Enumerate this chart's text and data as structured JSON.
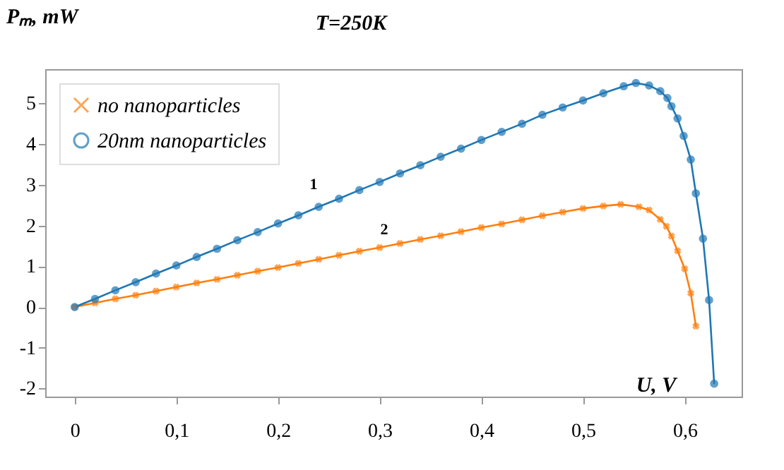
{
  "chart_data": {
    "type": "line",
    "title": "T=250K",
    "xlabel": "U, V",
    "ylabel": "Pₘ, mW",
    "xlim": [
      -0.029,
      0.656
    ],
    "ylim": [
      -2.2,
      5.84
    ],
    "xticks": [
      0,
      {
        "value": 0.1,
        "label": "0,1"
      },
      {
        "value": 0.2,
        "label": "0,2"
      },
      {
        "value": 0.3,
        "label": "0,3"
      },
      {
        "value": 0.4,
        "label": "0,4"
      },
      {
        "value": 0.5,
        "label": "0,5"
      },
      {
        "value": 0.6,
        "label": "0,6"
      }
    ],
    "yticks": [
      -2,
      -1,
      0,
      1,
      2,
      3,
      4,
      5
    ],
    "legend": "top left",
    "grid": false,
    "series": [
      {
        "name": "no nanoparticles",
        "color": "#ff7f0e",
        "marker": "cross",
        "x": [
          0,
          0.02,
          0.04,
          0.06,
          0.08,
          0.1,
          0.12,
          0.14,
          0.16,
          0.18,
          0.2,
          0.22,
          0.24,
          0.26,
          0.28,
          0.3,
          0.32,
          0.34,
          0.36,
          0.38,
          0.4,
          0.42,
          0.44,
          0.46,
          0.48,
          0.5,
          0.52,
          0.537,
          0.555,
          0.565,
          0.576,
          0.582,
          0.587,
          0.593,
          0.6,
          0.606,
          0.611
        ],
        "values": [
          0,
          0.1,
          0.2,
          0.29,
          0.39,
          0.49,
          0.59,
          0.68,
          0.78,
          0.88,
          0.97,
          1.07,
          1.17,
          1.27,
          1.37,
          1.46,
          1.56,
          1.66,
          1.75,
          1.85,
          1.95,
          2.04,
          2.14,
          2.24,
          2.33,
          2.42,
          2.48,
          2.52,
          2.46,
          2.38,
          2.15,
          1.98,
          1.74,
          1.38,
          0.94,
          0.34,
          -0.47
        ]
      },
      {
        "name": "20nm nanoparticles",
        "color": "#1f77b4",
        "marker": "circle",
        "x": [
          0,
          0.02,
          0.04,
          0.06,
          0.08,
          0.1,
          0.12,
          0.14,
          0.16,
          0.18,
          0.2,
          0.22,
          0.24,
          0.26,
          0.28,
          0.3,
          0.32,
          0.34,
          0.36,
          0.38,
          0.4,
          0.42,
          0.44,
          0.46,
          0.48,
          0.5,
          0.52,
          0.54,
          0.552,
          0.565,
          0.576,
          0.583,
          0.587,
          0.593,
          0.599,
          0.606,
          0.611,
          0.618,
          0.624,
          0.629
        ],
        "values": [
          0,
          0.2,
          0.41,
          0.61,
          0.82,
          1.02,
          1.23,
          1.43,
          1.64,
          1.84,
          2.05,
          2.25,
          2.46,
          2.66,
          2.87,
          3.07,
          3.28,
          3.48,
          3.69,
          3.89,
          4.1,
          4.3,
          4.5,
          4.72,
          4.9,
          5.07,
          5.25,
          5.42,
          5.5,
          5.44,
          5.3,
          5.13,
          4.93,
          4.63,
          4.2,
          3.62,
          2.79,
          1.68,
          0.17,
          -1.88
        ]
      }
    ],
    "annotations": [
      "1",
      "2"
    ]
  }
}
